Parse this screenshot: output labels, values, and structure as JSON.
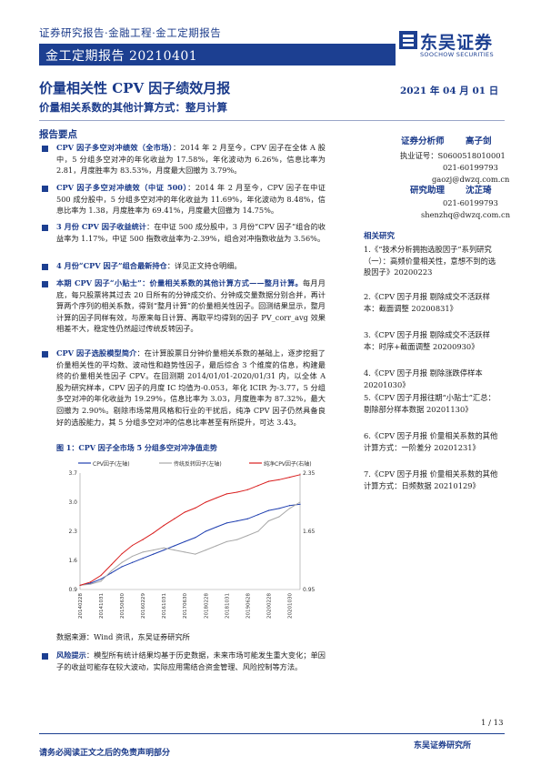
{
  "header": {
    "breadcrumb": "证券研究报告·金融工程·金工定期报告",
    "bar_title": "金工定期报告 20210401",
    "logo_cn": "东吴证券",
    "logo_en": "SOOCHOW SECURITIES"
  },
  "title": "价量相关性 CPV 因子绩效月报",
  "date": "2021 年 04 月 01 日",
  "subtitle": "价量相关系数的其他计算方式：整月计算",
  "key_points_heading": "报告要点",
  "paragraphs": [
    {
      "bold": "CPV 因子多空对冲绩效（全市场）",
      "text": "：2014 年 2 月至今，CPV 因子在全体 A 股中，5 分组多空对冲的年化收益为 17.58%，年化波动为 6.26%，信息比率为 2.81，月度胜率为 83.53%，月度最大回撤为 3.79%。"
    },
    {
      "bold": "CPV 因子多空对冲绩效（中证 500）",
      "text": "：2014 年 2 月至今，CPV 因子在中证 500 成分股中，5 分组多空对冲的年化收益为 11.69%，年化波动为 8.48%，信息比率为 1.38，月度胜率为 69.41%，月度最大回撤为 14.75%。"
    },
    {
      "bold": "3 月份 CPV 因子收益统计",
      "text": "：在中证 500 成分股中，3 月份“CPV 因子”组合的收益率为 1.17%，中证 500 指数收益率为-2.39%，组合对冲指数收益为 3.56%。"
    },
    {
      "bold": "4 月份“CPV 因子”组合最新持仓",
      "text": "：详见正文持仓明细。"
    },
    {
      "bold": "本期 CPV 因子“小贴士”：价量相关系数的其他计算方式——整月计算。",
      "text": "每月月底，每只股票将其过去 20 日所有的分钟成交价、分钟成交量数据分别合并，再计算两个序列的相关系数，得到“整月计算”的价量相关性因子。回测结果显示，整月计算的因子同样有效，与原来每日计算、再取平均得到的因子 PV_corr_avg 效果相差不大，稳定性仍然超过传统反转因子。"
    },
    {
      "bold": "CPV 因子选股模型简介",
      "text": "：在计算股票日分钟价量相关系数的基础上，逐步挖掘了价量相关性的平均数、波动性和趋势性因子，最后综合 3 个维度的信息，构建最终的价量相关性因子 CPV。在回测期 2014/01/01-2020/01/31 内，以全体 A 股为研究样本，CPV 因子的月度 IC 均值为-0.053，年化 ICIR 为-3.77，5 分组多空对冲的年化收益为 19.29%，信息比率为 3.03，月度胜率为 87.32%，最大回撤为 2.90%。剔除市场常用风格和行业的干扰后，纯净 CPV 因子仍然具备良好的选股能力，其 5 分组多空对冲的信息比率甚至有所提升，可达 3.43。"
    }
  ],
  "chart": {
    "title": "图 1：CPV 因子全市场 5 分组多空对冲净值走势",
    "legend": [
      "CPV因子(左轴)",
      "传统反转因子(左轴)",
      "纯净CPV因子(右轴)"
    ],
    "source": "数据来源：Wind 资讯，东吴证券研究所"
  },
  "chart_data": {
    "type": "line",
    "x": [
      "20140228",
      "20140630",
      "20141031",
      "20150227",
      "20150630",
      "20151030",
      "20160229",
      "20160630",
      "20161031",
      "20170228",
      "20170630",
      "20171031",
      "20180228",
      "20180629",
      "20181031",
      "20190228",
      "20190628",
      "20191031",
      "20200228",
      "20200630",
      "20201030",
      "20210226"
    ],
    "x_tick_labels": [
      "20140228",
      "20141031",
      "20150630",
      "20160229",
      "20161031",
      "20170630",
      "20180228",
      "20181031",
      "20190628",
      "20200228",
      "20201030"
    ],
    "left_axis": {
      "ylim": [
        0.9,
        3.7
      ],
      "ticks": [
        3.7,
        3.0,
        2.3,
        1.6,
        0.9
      ]
    },
    "right_axis": {
      "ylim": [
        0.95,
        2.35
      ],
      "ticks": [
        2.35,
        1.65,
        0.95
      ]
    },
    "series": [
      {
        "name": "CPV因子(左轴)",
        "color": "#1f3fb0",
        "axis": "left",
        "values": [
          1.0,
          1.05,
          1.15,
          1.3,
          1.45,
          1.55,
          1.65,
          1.75,
          1.85,
          1.95,
          2.05,
          2.15,
          2.3,
          2.4,
          2.5,
          2.55,
          2.6,
          2.7,
          2.8,
          2.85,
          2.92,
          2.95
        ]
      },
      {
        "name": "传统反转因子(左轴)",
        "color": "#a8a8a8",
        "axis": "left",
        "values": [
          1.0,
          1.03,
          1.1,
          1.35,
          1.55,
          1.7,
          1.8,
          1.85,
          1.9,
          1.85,
          1.8,
          1.75,
          1.85,
          1.95,
          2.05,
          2.1,
          2.2,
          2.3,
          2.55,
          2.65,
          2.85,
          3.0
        ]
      },
      {
        "name": "纯净CPV因子(右轴)",
        "color": "#d91e1e",
        "axis": "right",
        "values": [
          1.0,
          1.04,
          1.12,
          1.25,
          1.38,
          1.48,
          1.55,
          1.63,
          1.72,
          1.8,
          1.88,
          1.93,
          2.0,
          2.05,
          2.1,
          2.12,
          2.15,
          2.2,
          2.25,
          2.27,
          2.3,
          2.33
        ]
      }
    ]
  },
  "risk": {
    "bold": "风险提示",
    "text": "：模型所有统计结果均基于历史数据，未来市场可能发生重大变化；单因子的收益可能存在较大波动，实际应用需结合资金管理、风险控制等方法。"
  },
  "analyst": {
    "role1": "证券分析师",
    "name1": "高子剑",
    "cert": "执业证号：S0600518010001",
    "phone1": "021-60199793",
    "email1": "gaozj@dwzq.com.cn",
    "role2": "研究助理",
    "name2": "沈芷琦",
    "phone2": "021-60199793",
    "email2": "shenzhq@dwzq.com.cn"
  },
  "related": {
    "heading": "相关研究",
    "items": [
      "1.《“技术分析拥抱选股因子”系列研究（一）：高频价量相关性，意想不到的选股因子》20200223",
      "2.《CPV 因子月报 剔除成交不活跃样本：截面调整 20200831》",
      "3.《CPV 因子月报 剔除成交不活跃样本：时序+截面调整 20200930》",
      "4.《CPV 因子月报 剔除涨跌停样本 20201030》",
      "5.《CPV 因子月报往期“小贴士”汇总：剔除部分样本数据 20201130》",
      "6.《CPV 因子月报 价量相关系数的其他计算方式：一阶差分 20201231》",
      "7.《CPV 因子月报 价量相关系数的其他计算方式：日频数据 20210129》"
    ]
  },
  "footer": {
    "page": "1 / 13",
    "disclaimer": "请务必阅读正文之后的免责声明部分",
    "institute": "东吴证券研究所"
  }
}
